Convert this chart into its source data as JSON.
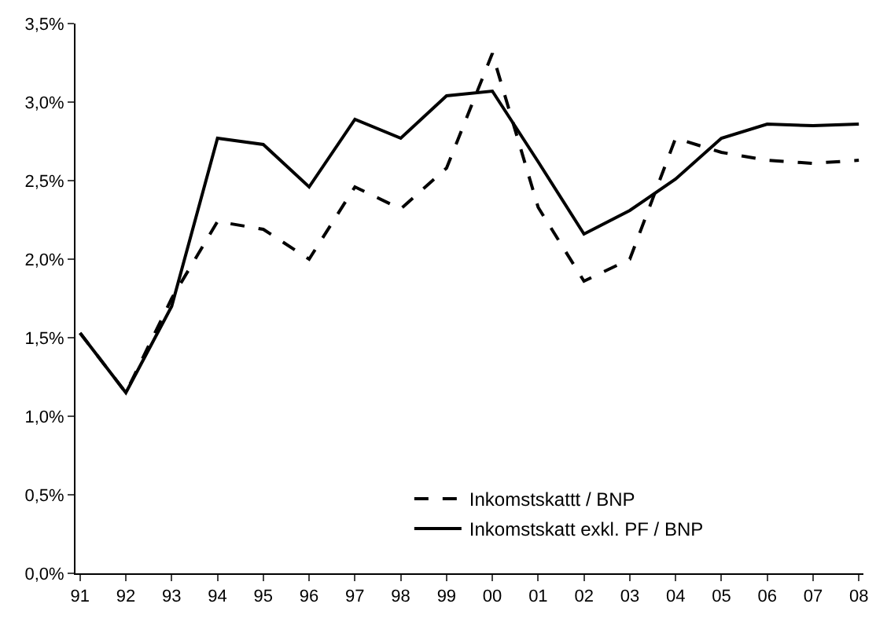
{
  "chart_data": {
    "type": "line",
    "categories": [
      "91",
      "92",
      "93",
      "94",
      "95",
      "96",
      "97",
      "98",
      "99",
      "00",
      "01",
      "02",
      "03",
      "04",
      "05",
      "06",
      "07",
      "08"
    ],
    "series": [
      {
        "name": "Inkomstskattt / BNP",
        "color": "#000000",
        "line_style": "dashed",
        "values": [
          1.53,
          1.15,
          1.75,
          2.24,
          2.19,
          2.0,
          2.46,
          2.32,
          2.58,
          3.31,
          2.33,
          1.86,
          2.0,
          2.77,
          2.68,
          2.63,
          2.61,
          2.63
        ]
      },
      {
        "name": "Inkomstskatt exkl. PF / BNP",
        "color": "#000000",
        "line_style": "solid",
        "values": [
          1.53,
          1.15,
          1.7,
          2.77,
          2.73,
          2.46,
          2.89,
          2.77,
          3.04,
          3.07,
          2.62,
          2.16,
          2.31,
          2.51,
          2.77,
          2.86,
          2.85,
          2.86
        ]
      }
    ],
    "ylim": [
      0,
      3.5
    ],
    "yticks": [
      {
        "value": 0,
        "label": "0,0%"
      },
      {
        "value": 0.5,
        "label": "0,5%"
      },
      {
        "value": 1,
        "label": "1,0%"
      },
      {
        "value": 1.5,
        "label": "1,5%"
      },
      {
        "value": 2,
        "label": "2,0%"
      },
      {
        "value": 2.5,
        "label": "2,5%"
      },
      {
        "value": 3,
        "label": "3,0%"
      },
      {
        "value": 3.5,
        "label": "3,5%"
      }
    ],
    "grid": false,
    "legend": "bottom right",
    "marker": "none"
  }
}
